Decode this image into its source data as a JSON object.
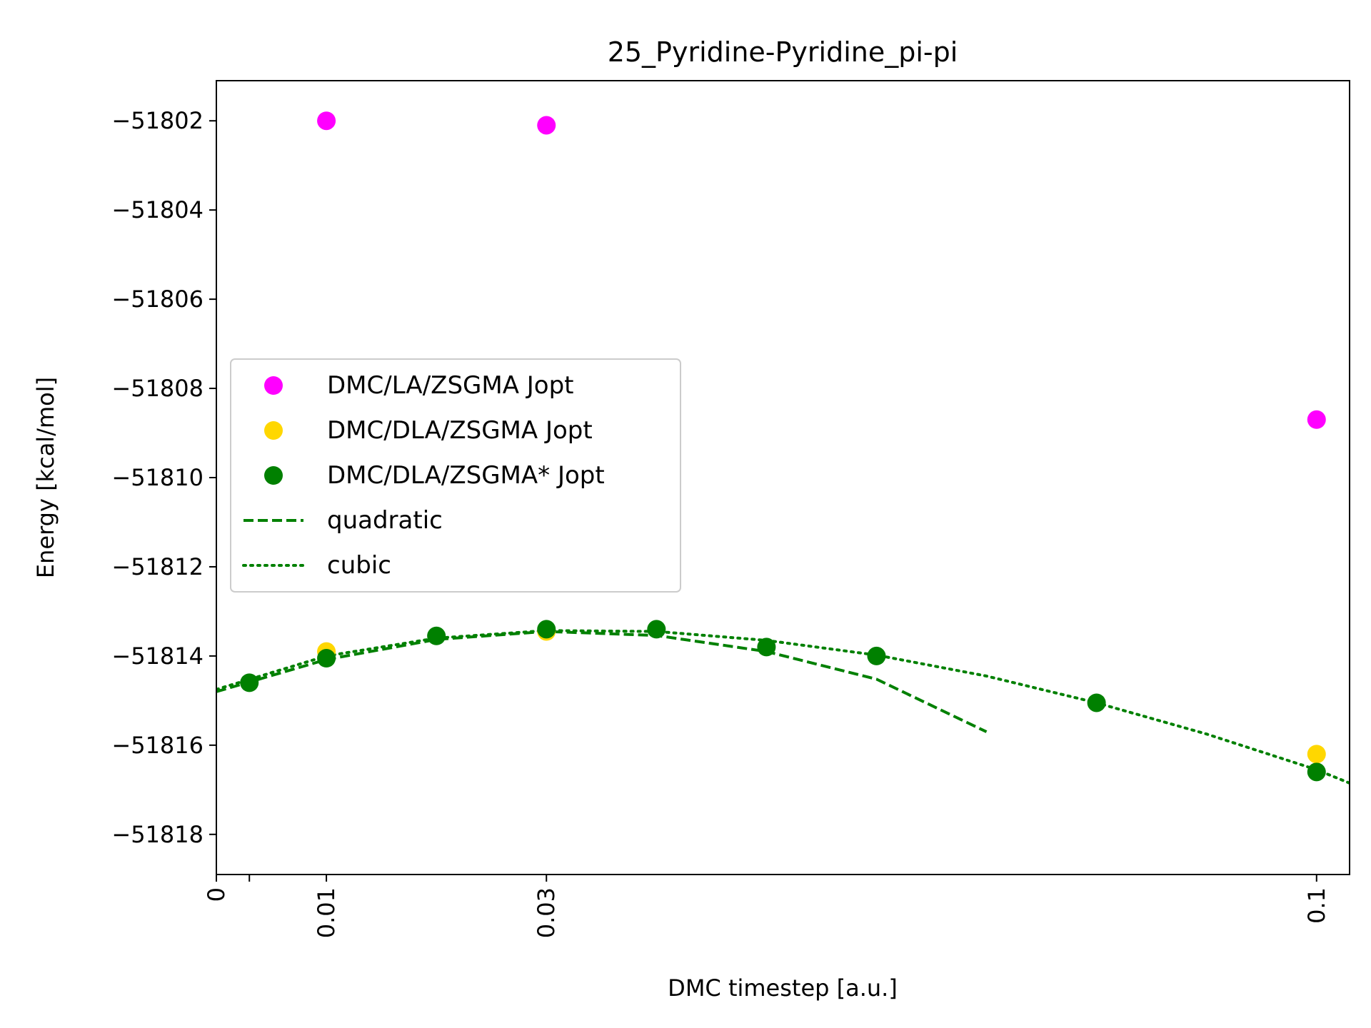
{
  "chart_data": {
    "type": "scatter",
    "title": "25_Pyridine-Pyridine_pi-pi",
    "xlabel": "DMC timestep [a.u.]",
    "ylabel": "Energy [kcal/mol]",
    "xlim": [
      0,
      0.103
    ],
    "ylim": [
      -51818.9,
      -51801.1
    ],
    "xticks": [
      {
        "value": 0,
        "label": "0"
      },
      {
        "value": 0.003,
        "label": ""
      },
      {
        "value": 0.01,
        "label": "0.01"
      },
      {
        "value": 0.03,
        "label": "0.03"
      },
      {
        "value": 0.1,
        "label": "0.1"
      }
    ],
    "yticks": [
      {
        "value": -51802,
        "label": "−51802"
      },
      {
        "value": -51804,
        "label": "−51804"
      },
      {
        "value": -51806,
        "label": "−51806"
      },
      {
        "value": -51808,
        "label": "−51808"
      },
      {
        "value": -51810,
        "label": "−51810"
      },
      {
        "value": -51812,
        "label": "−51812"
      },
      {
        "value": -51814,
        "label": "−51814"
      },
      {
        "value": -51816,
        "label": "−51816"
      },
      {
        "value": -51818,
        "label": "−51818"
      }
    ],
    "grid": false,
    "legend_position": "center-left",
    "series": [
      {
        "name": "DMC/LA/ZSGMA Jopt",
        "kind": "scatter",
        "color": "#ff00ff",
        "x": [
          0.01,
          0.03,
          0.1
        ],
        "y": [
          -51802.0,
          -51802.1,
          -51808.7
        ]
      },
      {
        "name": "DMC/DLA/ZSGMA Jopt",
        "kind": "scatter",
        "color": "#ffd700",
        "x": [
          0.01,
          0.03,
          0.1
        ],
        "y": [
          -51813.9,
          -51813.45,
          -51816.2
        ]
      },
      {
        "name": "DMC/DLA/ZSGMA* Jopt",
        "kind": "scatter",
        "color": "#008000",
        "x": [
          0.003,
          0.01,
          0.02,
          0.03,
          0.04,
          0.05,
          0.06,
          0.08,
          0.1
        ],
        "y": [
          -51814.6,
          -51814.05,
          -51813.55,
          -51813.4,
          -51813.4,
          -51813.8,
          -51814.0,
          -51815.05,
          -51816.6
        ]
      },
      {
        "name": "quadratic",
        "kind": "line",
        "style": "dashed",
        "color": "#008000",
        "x": [
          0,
          0.01,
          0.02,
          0.03,
          0.04,
          0.05,
          0.06,
          0.07
        ],
        "y": [
          -51814.8,
          -51814.08,
          -51813.63,
          -51813.45,
          -51813.54,
          -51813.9,
          -51814.52,
          -51815.7
        ]
      },
      {
        "name": "cubic",
        "kind": "line",
        "style": "dotted",
        "color": "#008000",
        "x": [
          0,
          0.01,
          0.02,
          0.03,
          0.04,
          0.05,
          0.06,
          0.07,
          0.08,
          0.09,
          0.1,
          0.103
        ],
        "y": [
          -51814.75,
          -51814.0,
          -51813.6,
          -51813.43,
          -51813.45,
          -51813.65,
          -51813.98,
          -51814.45,
          -51815.05,
          -51815.75,
          -51816.55,
          -51816.85
        ]
      }
    ]
  }
}
